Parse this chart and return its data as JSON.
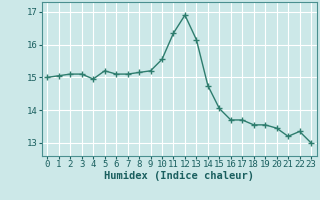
{
  "x": [
    0,
    1,
    2,
    3,
    4,
    5,
    6,
    7,
    8,
    9,
    10,
    11,
    12,
    13,
    14,
    15,
    16,
    17,
    18,
    19,
    20,
    21,
    22,
    23
  ],
  "y": [
    15.0,
    15.05,
    15.1,
    15.1,
    14.95,
    15.2,
    15.1,
    15.1,
    15.15,
    15.2,
    15.55,
    16.35,
    16.9,
    16.15,
    14.75,
    14.05,
    13.7,
    13.7,
    13.55,
    13.55,
    13.45,
    13.2,
    13.35,
    13.0
  ],
  "line_color": "#2e7d6e",
  "marker": "+",
  "marker_size": 5,
  "bg_color": "#cce8e8",
  "grid_color": "#ffffff",
  "xlabel": "Humidex (Indice chaleur)",
  "ylim": [
    12.6,
    17.3
  ],
  "xlim": [
    -0.5,
    23.5
  ],
  "yticks": [
    13,
    14,
    15,
    16,
    17
  ],
  "xticks": [
    0,
    1,
    2,
    3,
    4,
    5,
    6,
    7,
    8,
    9,
    10,
    11,
    12,
    13,
    14,
    15,
    16,
    17,
    18,
    19,
    20,
    21,
    22,
    23
  ],
  "xlabel_fontsize": 7.5,
  "tick_fontsize": 6.5
}
